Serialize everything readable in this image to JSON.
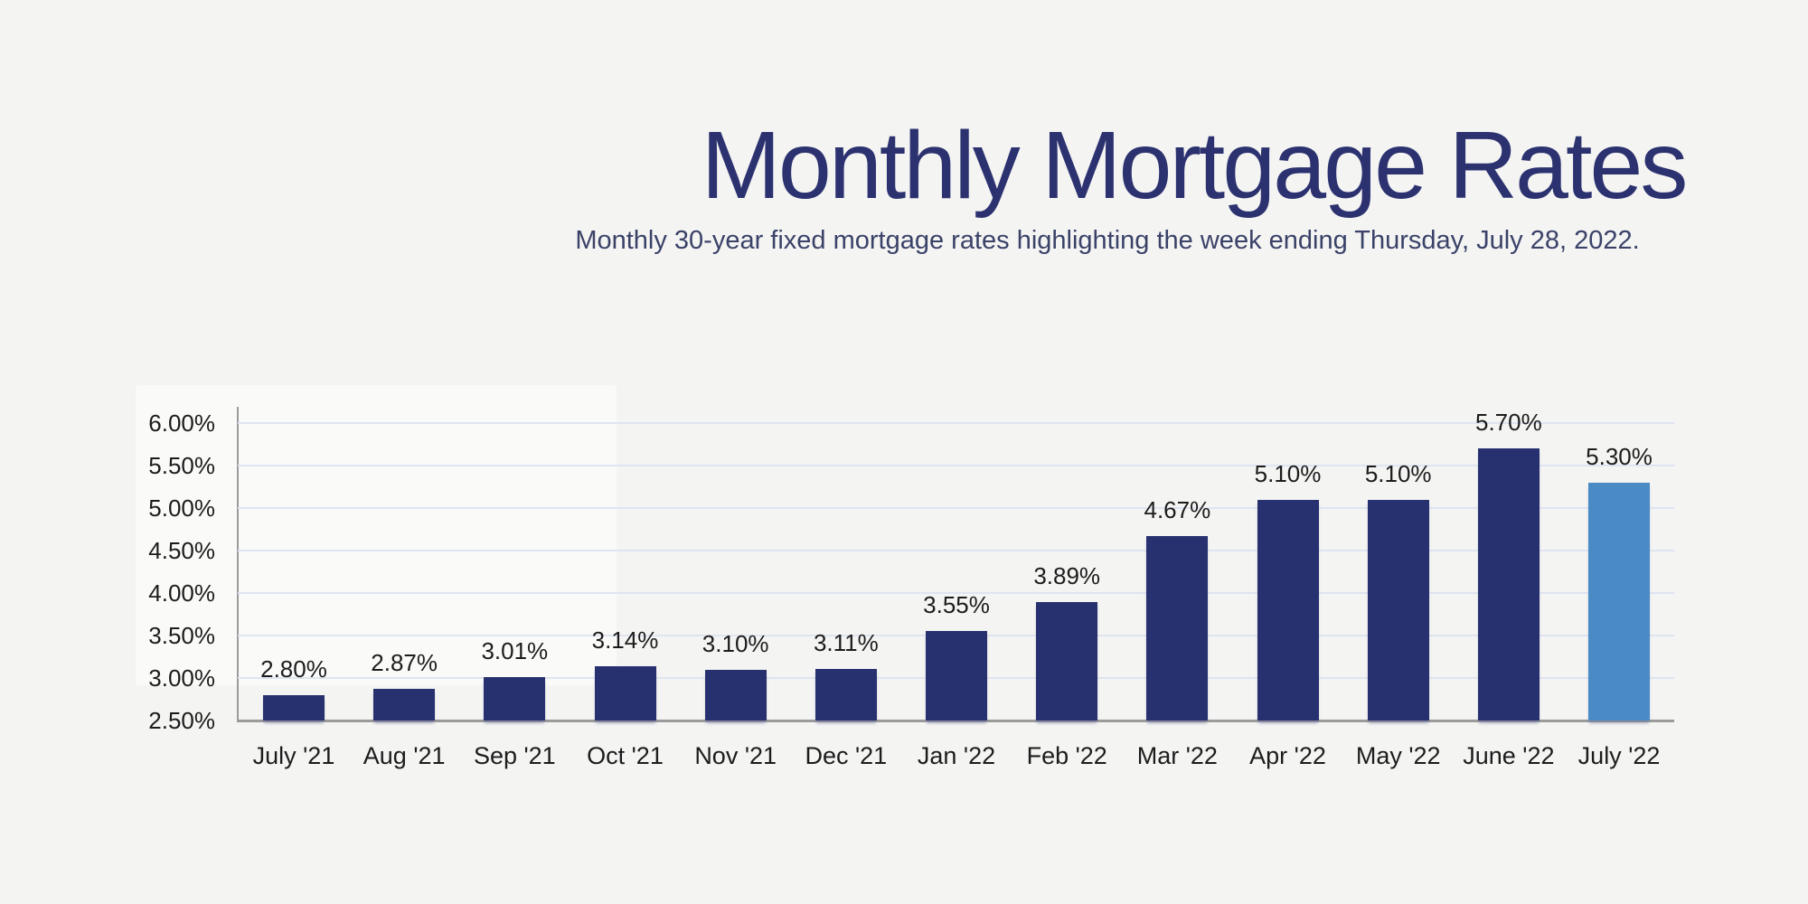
{
  "header": {
    "title": "Monthly Mortgage Rates",
    "subtitle": "Monthly 30-year fixed mortgage rates highlighting the week ending Thursday, July 28, 2022."
  },
  "colors": {
    "background": "#f4f4f3",
    "title": "#2c326f",
    "subtitle": "#3b4268",
    "bar": "#283170",
    "bar_highlight": "#4a8bc6",
    "gridline": "#dfe4f1",
    "axis": "#9b9b9b",
    "label_text": "#1c1c1c"
  },
  "chart_data": {
    "type": "bar",
    "title": "Monthly Mortgage Rates",
    "subtitle": "Monthly 30-year fixed mortgage rates highlighting the week ending Thursday, July 28, 2022.",
    "categories": [
      "July '21",
      "Aug '21",
      "Sep '21",
      "Oct '21",
      "Nov '21",
      "Dec '21",
      "Jan '22",
      "Feb '22",
      "Mar '22",
      "Apr '22",
      "May '22",
      "June '22",
      "July '22"
    ],
    "values": [
      2.8,
      2.87,
      3.01,
      3.14,
      3.1,
      3.11,
      3.55,
      3.89,
      4.67,
      5.1,
      5.1,
      5.7,
      5.3
    ],
    "data_labels": [
      "2.80%",
      "2.87%",
      "3.01%",
      "3.14%",
      "3.10%",
      "3.11%",
      "3.55%",
      "3.89%",
      "4.67%",
      "5.10%",
      "5.10%",
      "5.70%",
      "5.30%"
    ],
    "y_ticks": [
      {
        "value": 6.0,
        "label": "6.00%"
      },
      {
        "value": 5.5,
        "label": "5.50%"
      },
      {
        "value": 5.0,
        "label": "5.00%"
      },
      {
        "value": 4.5,
        "label": "4.50%"
      },
      {
        "value": 4.0,
        "label": "4.00%"
      },
      {
        "value": 3.5,
        "label": "3.50%"
      },
      {
        "value": 3.0,
        "label": "3.00%"
      },
      {
        "value": 2.5,
        "label": "2.50%"
      }
    ],
    "ylim": [
      2.5,
      6.0
    ],
    "grid": true,
    "legend": "none",
    "highlight_index": 12
  }
}
